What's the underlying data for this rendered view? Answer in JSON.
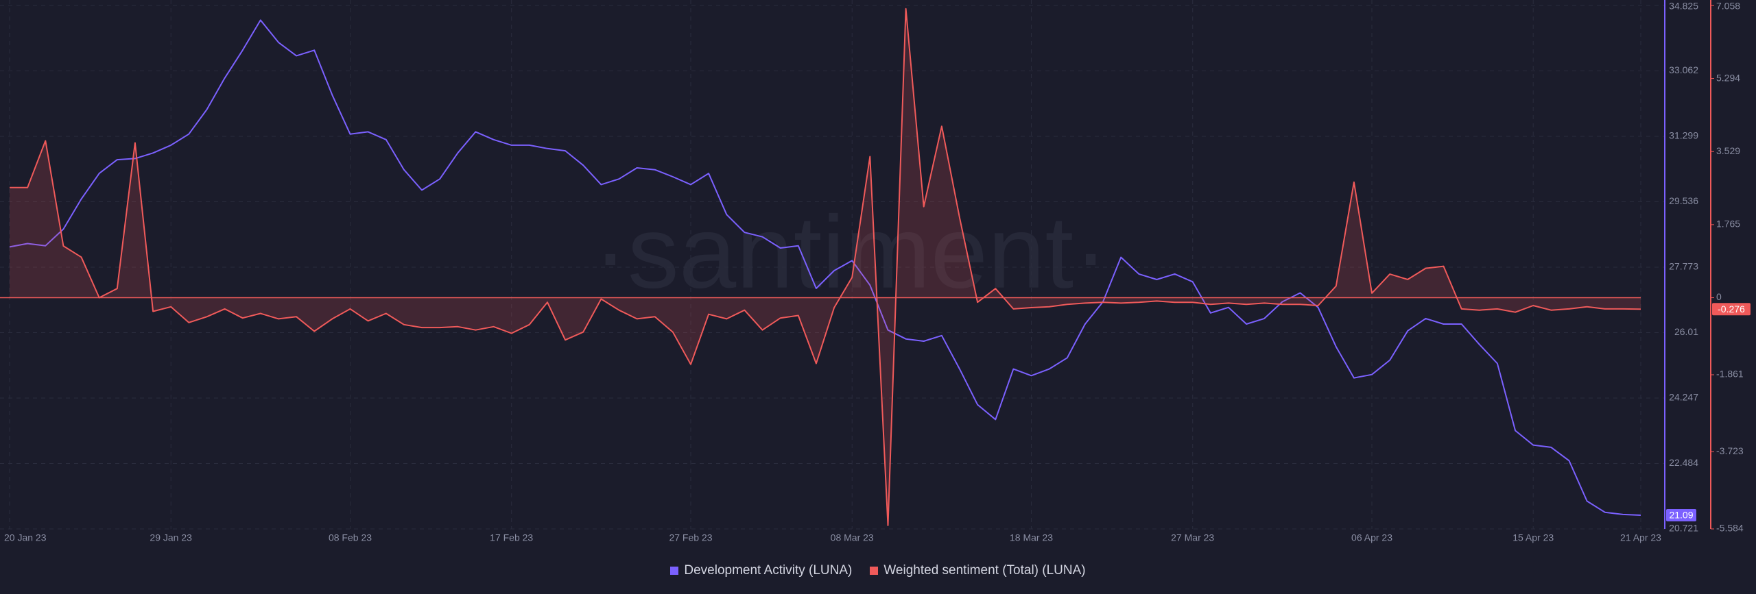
{
  "chart_data": {
    "type": "line",
    "watermark": "·santiment·",
    "x": [
      "2023-01-20",
      "2023-01-21",
      "2023-01-22",
      "2023-01-23",
      "2023-01-24",
      "2023-01-25",
      "2023-01-26",
      "2023-01-27",
      "2023-01-28",
      "2023-01-29",
      "2023-01-30",
      "2023-01-31",
      "2023-02-01",
      "2023-02-02",
      "2023-02-03",
      "2023-02-04",
      "2023-02-05",
      "2023-02-06",
      "2023-02-07",
      "2023-02-08",
      "2023-02-09",
      "2023-02-10",
      "2023-02-11",
      "2023-02-12",
      "2023-02-13",
      "2023-02-14",
      "2023-02-15",
      "2023-02-16",
      "2023-02-17",
      "2023-02-18",
      "2023-02-19",
      "2023-02-20",
      "2023-02-21",
      "2023-02-22",
      "2023-02-23",
      "2023-02-24",
      "2023-02-25",
      "2023-02-26",
      "2023-02-27",
      "2023-02-28",
      "2023-03-01",
      "2023-03-02",
      "2023-03-03",
      "2023-03-04",
      "2023-03-05",
      "2023-03-06",
      "2023-03-07",
      "2023-03-08",
      "2023-03-09",
      "2023-03-10",
      "2023-03-11",
      "2023-03-12",
      "2023-03-13",
      "2023-03-14",
      "2023-03-15",
      "2023-03-16",
      "2023-03-17",
      "2023-03-18",
      "2023-03-19",
      "2023-03-20",
      "2023-03-21",
      "2023-03-22",
      "2023-03-23",
      "2023-03-24",
      "2023-03-25",
      "2023-03-26",
      "2023-03-27",
      "2023-03-28",
      "2023-03-29",
      "2023-03-30",
      "2023-03-31",
      "2023-04-01",
      "2023-04-02",
      "2023-04-03",
      "2023-04-04",
      "2023-04-05",
      "2023-04-06",
      "2023-04-07",
      "2023-04-08",
      "2023-04-09",
      "2023-04-10",
      "2023-04-11",
      "2023-04-12",
      "2023-04-13",
      "2023-04-14",
      "2023-04-15",
      "2023-04-16",
      "2023-04-17",
      "2023-04-18",
      "2023-04-19",
      "2023-04-20",
      "2023-04-21"
    ],
    "xlim": [
      "2023-01-20",
      "2023-04-21"
    ],
    "xticks": [
      {
        "value": "2023-01-20",
        "label": "20 Jan 23"
      },
      {
        "value": "2023-01-29",
        "label": "29 Jan 23"
      },
      {
        "value": "2023-02-08",
        "label": "08 Feb 23"
      },
      {
        "value": "2023-02-17",
        "label": "17 Feb 23"
      },
      {
        "value": "2023-02-27",
        "label": "27 Feb 23"
      },
      {
        "value": "2023-03-08",
        "label": "08 Mar 23"
      },
      {
        "value": "2023-03-18",
        "label": "18 Mar 23"
      },
      {
        "value": "2023-03-27",
        "label": "27 Mar 23"
      },
      {
        "value": "2023-04-06",
        "label": "06 Apr 23"
      },
      {
        "value": "2023-04-15",
        "label": "15 Apr 23"
      },
      {
        "value": "2023-04-21",
        "label": "21 Apr 23"
      }
    ],
    "ylim": [
      20.721,
      34.825
    ],
    "yticks": [
      20.721,
      22.484,
      24.247,
      26.01,
      27.773,
      29.536,
      31.299,
      33.062,
      34.825
    ],
    "y2lim": [
      -5.584,
      7.058
    ],
    "y2ticks": [
      -5.584,
      -3.723,
      -1.861,
      0,
      1.765,
      3.529,
      5.294,
      7.058
    ],
    "grid": true,
    "series": [
      {
        "name": "Development Activity (LUNA)",
        "color": "#7b61ff",
        "axis": "y",
        "values": [
          28.32,
          28.41,
          28.35,
          28.8,
          29.61,
          30.3,
          30.67,
          30.7,
          30.85,
          31.06,
          31.36,
          32.02,
          32.87,
          33.62,
          34.43,
          33.83,
          33.47,
          33.62,
          32.41,
          31.36,
          31.42,
          31.21,
          30.4,
          29.85,
          30.15,
          30.85,
          31.42,
          31.21,
          31.06,
          31.06,
          30.97,
          30.91,
          30.52,
          30.0,
          30.15,
          30.45,
          30.4,
          30.21,
          30.0,
          30.3,
          29.19,
          28.71,
          28.59,
          28.29,
          28.35,
          27.2,
          27.68,
          27.95,
          27.29,
          26.08,
          25.84,
          25.78,
          25.93,
          25.03,
          24.07,
          23.67,
          25.03,
          24.85,
          25.03,
          25.33,
          26.24,
          26.84,
          28.04,
          27.59,
          27.44,
          27.59,
          27.38,
          26.54,
          26.69,
          26.24,
          26.39,
          26.84,
          27.08,
          26.69,
          25.63,
          24.79,
          24.88,
          25.27,
          26.06,
          26.39,
          26.24,
          26.24,
          25.69,
          25.18,
          23.37,
          22.98,
          22.92,
          22.56,
          21.47,
          21.17,
          21.11,
          21.09
        ]
      },
      {
        "name": "Weighted sentiment (Total) (LUNA)",
        "color": "#f05a5a",
        "axis": "y2",
        "area": true,
        "values": [
          2.66,
          2.66,
          3.79,
          1.25,
          0.98,
          0,
          0.22,
          3.74,
          -0.33,
          -0.22,
          -0.6,
          -0.46,
          -0.27,
          -0.49,
          -0.38,
          -0.51,
          -0.46,
          -0.81,
          -0.51,
          -0.27,
          -0.56,
          -0.38,
          -0.65,
          -0.72,
          -0.72,
          -0.7,
          -0.78,
          -0.7,
          -0.86,
          -0.65,
          -0.11,
          -1.02,
          -0.83,
          -0.03,
          -0.3,
          -0.51,
          -0.46,
          -0.83,
          -1.61,
          -0.4,
          -0.51,
          -0.3,
          -0.78,
          -0.49,
          -0.43,
          -1.59,
          -0.24,
          0.49,
          3.41,
          -5.5,
          6.98,
          2.2,
          4.14,
          1.93,
          -0.11,
          0.22,
          -0.27,
          -0.24,
          -0.22,
          -0.16,
          -0.13,
          -0.11,
          -0.13,
          -0.11,
          -0.08,
          -0.11,
          -0.11,
          -0.16,
          -0.13,
          -0.16,
          -0.13,
          -0.16,
          -0.16,
          -0.19,
          0.28,
          2.79,
          0.11,
          0.57,
          0.44,
          0.71,
          0.76,
          -0.27,
          -0.3,
          -0.27,
          -0.35,
          -0.19,
          -0.3,
          -0.27,
          -0.22,
          -0.27,
          -0.27,
          -0.276
        ]
      }
    ]
  }
}
